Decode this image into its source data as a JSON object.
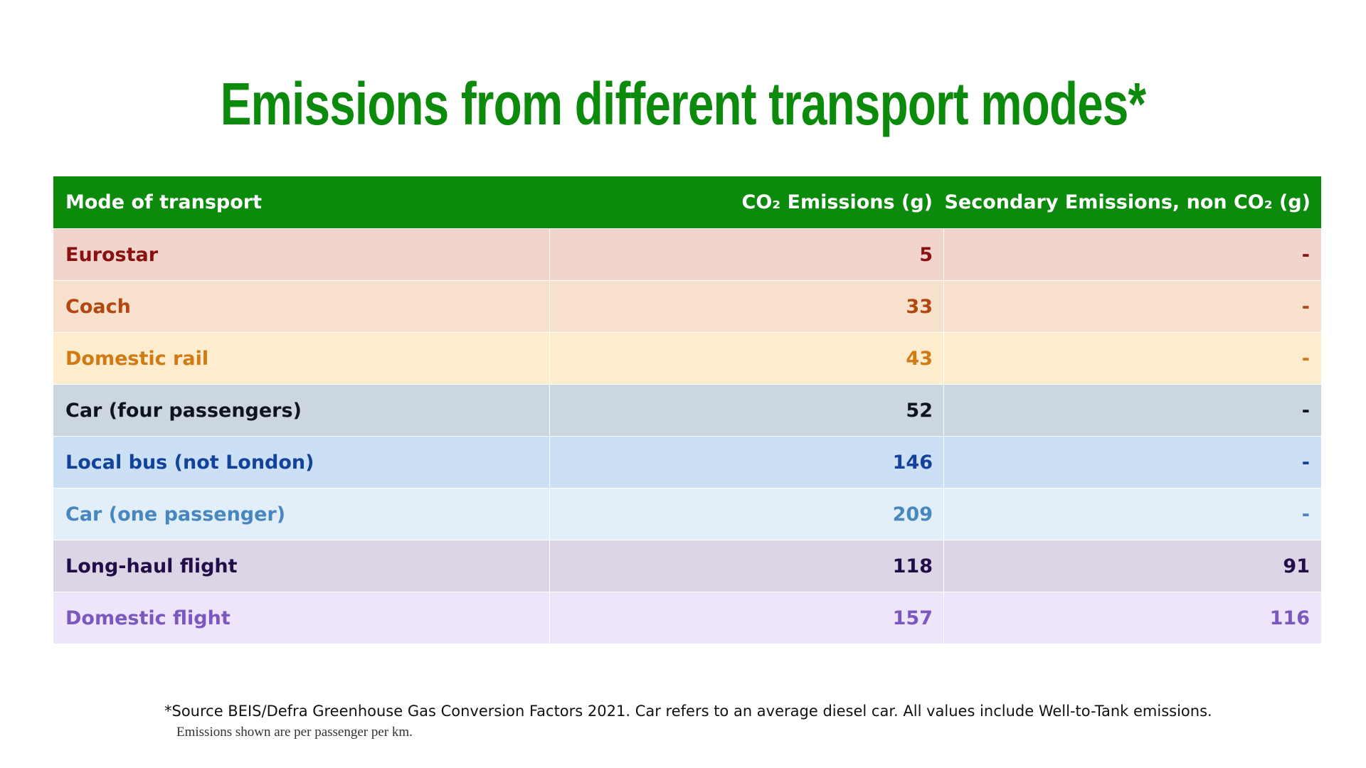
{
  "title": "Emissions from different transport modes*",
  "colors": {
    "title": "#0b8a0b",
    "header_bg": "#0b8a0b",
    "header_text": "#ffffff"
  },
  "chart_data": {
    "type": "table",
    "columns": [
      "Mode of transport",
      "CO₂ Emissions (g)",
      "Secondary Emissions, non CO₂ (g)"
    ],
    "rows": [
      {
        "mode": "Eurostar",
        "co2": "5",
        "secondary": "-",
        "bg": "#f1d5cc",
        "fg": "#8b1010"
      },
      {
        "mode": "Coach",
        "co2": "33",
        "secondary": "-",
        "bg": "#f7e0cc",
        "fg": "#b34712"
      },
      {
        "mode": "Domestic rail",
        "co2": "43",
        "secondary": "-",
        "bg": "#fdeccd",
        "fg": "#cf7a12"
      },
      {
        "mode": "Car (four passengers)",
        "co2": "52",
        "secondary": "-",
        "bg": "#cbd6e0",
        "fg": "#0f1520"
      },
      {
        "mode": "Local bus (not London)",
        "co2": "146",
        "secondary": "-",
        "bg": "#cbe0f4",
        "fg": "#12429a"
      },
      {
        "mode": "Car (one passenger)",
        "co2": "209",
        "secondary": "-",
        "bg": "#e2eff9",
        "fg": "#4886c0"
      },
      {
        "mode": "Long-haul flight",
        "co2": "118",
        "secondary": "91",
        "bg": "#ddd5e6",
        "fg": "#200e48"
      },
      {
        "mode": "Domestic flight",
        "co2": "157",
        "secondary": "116",
        "bg": "#eee5fb",
        "fg": "#7b58bf"
      }
    ]
  },
  "footnote": {
    "source": "*Source BEIS/Defra Greenhouse Gas Conversion Factors 2021. Car refers to an average diesel car. All values include Well-to-Tank emissions.",
    "unit_note": "Emissions shown are per passenger per km."
  }
}
